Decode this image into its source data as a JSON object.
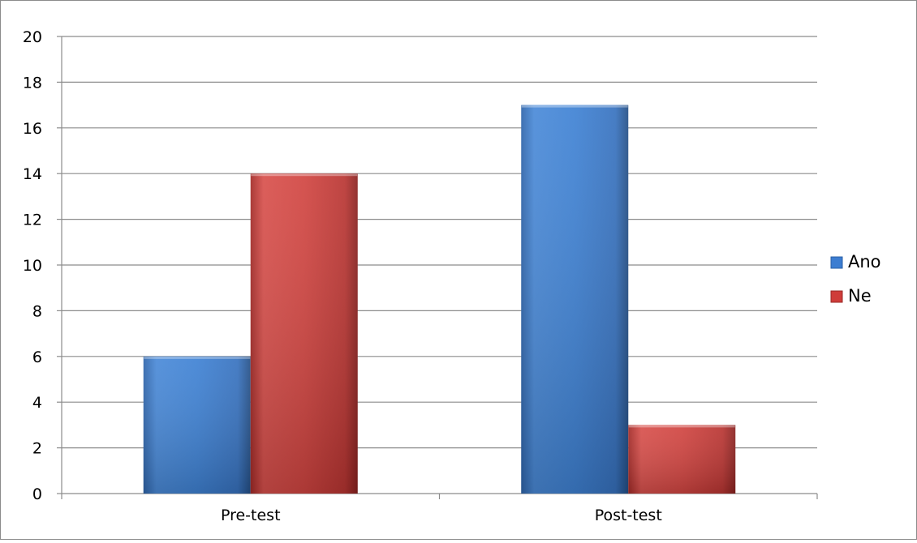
{
  "chart_data": {
    "type": "bar",
    "categories": [
      "Pre-test",
      "Post-test"
    ],
    "series": [
      {
        "name": "Ano",
        "values": [
          6,
          17
        ],
        "color": "#3c7dd1"
      },
      {
        "name": "Ne",
        "values": [
          14,
          3
        ],
        "color": "#cf3d3a"
      }
    ],
    "ylim": [
      0,
      20
    ],
    "y_ticks": [
      "0",
      "2",
      "4",
      "6",
      "8",
      "10",
      "12",
      "14",
      "16",
      "18",
      "20"
    ],
    "grid": "horizontal",
    "legend_position": "right"
  }
}
